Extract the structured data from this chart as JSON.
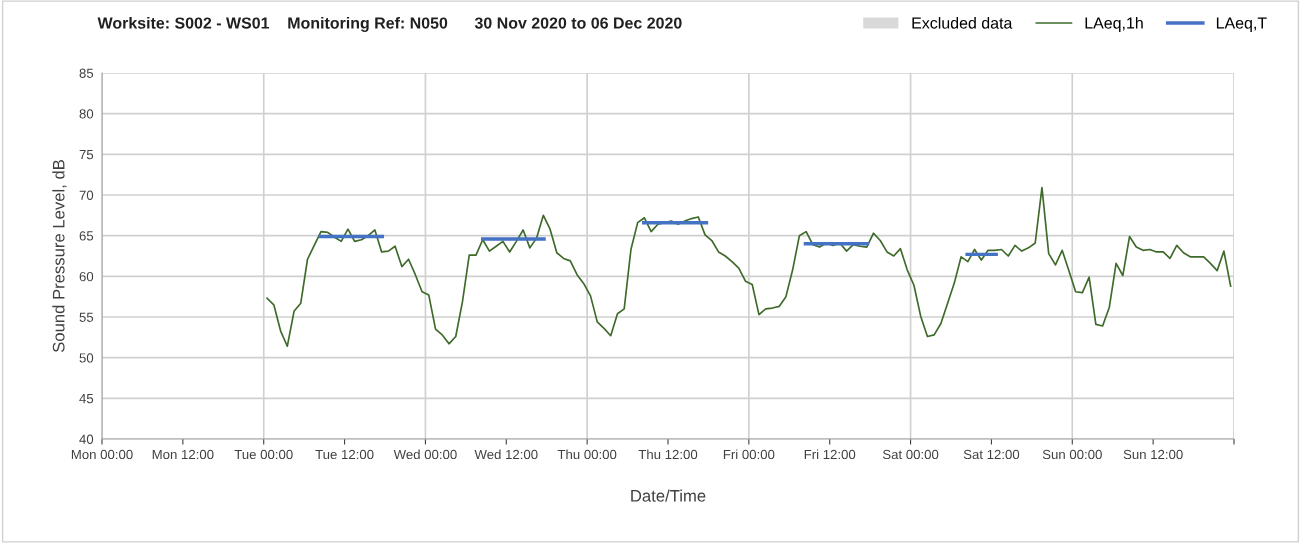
{
  "chart_data": {
    "type": "line",
    "title": "Worksite: S002 - WS01    Monitoring Ref: N050      30 Nov 2020 to 06 Dec 2020",
    "xlabel": "Date/Time",
    "ylabel": "Sound Pressure Level, dB",
    "xlim": [
      "2020-11-30T00:00",
      "2020-12-07T00:00"
    ],
    "ylim": [
      40,
      85
    ],
    "xticks": [
      {
        "value": "2020-11-30T00:00",
        "label": "Mon 00:00"
      },
      {
        "value": "2020-11-30T12:00",
        "label": "Mon 12:00"
      },
      {
        "value": "2020-12-01T00:00",
        "label": "Tue 00:00"
      },
      {
        "value": "2020-12-01T12:00",
        "label": "Tue 12:00"
      },
      {
        "value": "2020-12-02T00:00",
        "label": "Wed 00:00"
      },
      {
        "value": "2020-12-02T12:00",
        "label": "Wed 12:00"
      },
      {
        "value": "2020-12-03T00:00",
        "label": "Thu 00:00"
      },
      {
        "value": "2020-12-03T12:00",
        "label": "Thu 12:00"
      },
      {
        "value": "2020-12-04T00:00",
        "label": "Fri 00:00"
      },
      {
        "value": "2020-12-04T12:00",
        "label": "Fri 12:00"
      },
      {
        "value": "2020-12-05T00:00",
        "label": "Sat 00:00"
      },
      {
        "value": "2020-12-05T12:00",
        "label": "Sat 12:00"
      },
      {
        "value": "2020-12-06T00:00",
        "label": "Sun 00:00"
      },
      {
        "value": "2020-12-06T12:00",
        "label": "Sun 12:00"
      },
      {
        "value": "2020-12-07T00:00",
        "label": null
      }
    ],
    "yticks": [
      40,
      45,
      50,
      55,
      60,
      65,
      70,
      75,
      80,
      85
    ],
    "grid": true,
    "legend": "top right",
    "series": [
      {
        "name": "Excluded data",
        "type": "bar",
        "color": "#d9d9d9"
      },
      {
        "name": "LAeq,1h",
        "color": "#3e6a2a",
        "x": [
          "2020-12-01T00:30",
          "2020-12-01T01:30",
          "2020-12-01T02:30",
          "2020-12-01T03:30",
          "2020-12-01T04:30",
          "2020-12-01T05:30",
          "2020-12-01T06:30",
          "2020-12-01T07:30",
          "2020-12-01T08:30",
          "2020-12-01T09:30",
          "2020-12-01T10:30",
          "2020-12-01T11:30",
          "2020-12-01T12:30",
          "2020-12-01T13:30",
          "2020-12-01T14:30",
          "2020-12-01T15:30",
          "2020-12-01T16:30",
          "2020-12-01T17:30",
          "2020-12-01T18:30",
          "2020-12-01T19:30",
          "2020-12-01T20:30",
          "2020-12-01T21:30",
          "2020-12-01T22:30",
          "2020-12-01T23:30",
          "2020-12-02T00:30",
          "2020-12-02T01:30",
          "2020-12-02T02:30",
          "2020-12-02T03:30",
          "2020-12-02T04:30",
          "2020-12-02T05:30",
          "2020-12-02T06:30",
          "2020-12-02T07:30",
          "2020-12-02T08:30",
          "2020-12-02T09:30",
          "2020-12-02T10:30",
          "2020-12-02T11:30",
          "2020-12-02T12:30",
          "2020-12-02T13:30",
          "2020-12-02T14:30",
          "2020-12-02T15:30",
          "2020-12-02T16:30",
          "2020-12-02T17:30",
          "2020-12-02T18:30",
          "2020-12-02T19:30",
          "2020-12-02T20:30",
          "2020-12-02T21:30",
          "2020-12-02T22:30",
          "2020-12-02T23:30",
          "2020-12-03T00:30",
          "2020-12-03T01:30",
          "2020-12-03T02:30",
          "2020-12-03T03:30",
          "2020-12-03T04:30",
          "2020-12-03T05:30",
          "2020-12-03T06:30",
          "2020-12-03T07:30",
          "2020-12-03T08:30",
          "2020-12-03T09:30",
          "2020-12-03T10:30",
          "2020-12-03T11:30",
          "2020-12-03T12:30",
          "2020-12-03T13:30",
          "2020-12-03T14:30",
          "2020-12-03T15:30",
          "2020-12-03T16:30",
          "2020-12-03T17:30",
          "2020-12-03T18:30",
          "2020-12-03T19:30",
          "2020-12-03T20:30",
          "2020-12-03T21:30",
          "2020-12-03T22:30",
          "2020-12-03T23:30",
          "2020-12-04T00:30",
          "2020-12-04T01:30",
          "2020-12-04T02:30",
          "2020-12-04T03:30",
          "2020-12-04T04:30",
          "2020-12-04T05:30",
          "2020-12-04T06:30",
          "2020-12-04T07:30",
          "2020-12-04T08:30",
          "2020-12-04T09:30",
          "2020-12-04T10:30",
          "2020-12-04T11:30",
          "2020-12-04T12:30",
          "2020-12-04T13:30",
          "2020-12-04T14:30",
          "2020-12-04T15:30",
          "2020-12-04T16:30",
          "2020-12-04T17:30",
          "2020-12-04T18:30",
          "2020-12-04T19:30",
          "2020-12-04T20:30",
          "2020-12-04T21:30",
          "2020-12-04T22:30",
          "2020-12-04T23:30",
          "2020-12-05T00:30",
          "2020-12-05T01:30",
          "2020-12-05T02:30",
          "2020-12-05T03:30",
          "2020-12-05T04:30",
          "2020-12-05T05:30",
          "2020-12-05T06:30",
          "2020-12-05T07:30",
          "2020-12-05T08:30",
          "2020-12-05T09:30",
          "2020-12-05T10:30",
          "2020-12-05T11:30",
          "2020-12-05T12:30",
          "2020-12-05T13:30",
          "2020-12-05T14:30",
          "2020-12-05T15:30",
          "2020-12-05T16:30",
          "2020-12-05T17:30",
          "2020-12-05T18:30",
          "2020-12-05T19:30",
          "2020-12-05T20:30",
          "2020-12-05T21:30",
          "2020-12-05T22:30",
          "2020-12-05T23:30",
          "2020-12-06T00:30",
          "2020-12-06T01:30",
          "2020-12-06T02:30",
          "2020-12-06T03:30",
          "2020-12-06T04:30",
          "2020-12-06T05:30",
          "2020-12-06T06:30",
          "2020-12-06T07:30",
          "2020-12-06T08:30",
          "2020-12-06T09:30",
          "2020-12-06T10:30",
          "2020-12-06T11:30",
          "2020-12-06T12:30",
          "2020-12-06T13:30",
          "2020-12-06T14:30",
          "2020-12-06T15:30",
          "2020-12-06T16:30",
          "2020-12-06T17:30",
          "2020-12-06T18:30",
          "2020-12-06T19:30",
          "2020-12-06T20:30",
          "2020-12-06T21:30",
          "2020-12-06T22:30",
          "2020-12-06T23:30"
        ],
        "values": [
          57.3,
          56.5,
          53.3,
          51.4,
          55.7,
          56.7,
          62.1,
          63.8,
          65.5,
          65.4,
          64.8,
          64.3,
          65.8,
          64.3,
          64.5,
          65.0,
          65.7,
          63.0,
          63.1,
          63.7,
          61.2,
          62.1,
          60.2,
          58.1,
          57.7,
          53.5,
          52.8,
          51.7,
          52.6,
          56.9,
          62.6,
          62.6,
          64.5,
          63.1,
          63.7,
          64.3,
          63.0,
          64.3,
          65.7,
          63.5,
          64.7,
          67.5,
          65.8,
          62.9,
          62.2,
          61.9,
          60.2,
          59.1,
          57.6,
          54.4,
          53.6,
          52.7,
          55.4,
          56.0,
          63.3,
          66.6,
          67.2,
          65.5,
          66.4,
          66.6,
          66.8,
          66.4,
          66.8,
          67.1,
          67.3,
          65.1,
          64.4,
          63.0,
          62.5,
          61.8,
          61.0,
          59.4,
          59.0,
          55.3,
          56.0,
          56.1,
          56.3,
          57.5,
          60.8,
          65.0,
          65.5,
          63.9,
          63.6,
          64.1,
          63.8,
          64.1,
          63.1,
          63.9,
          63.7,
          63.6,
          65.3,
          64.4,
          63.0,
          62.5,
          63.4,
          60.8,
          58.9,
          55.1,
          52.6,
          52.8,
          54.2,
          56.7,
          59.2,
          62.4,
          61.8,
          63.3,
          62.0,
          63.2,
          63.2,
          63.3,
          62.5,
          63.8,
          63.1,
          63.5,
          64.1,
          70.9,
          62.8,
          61.4,
          63.2,
          60.7,
          58.1,
          58.0,
          59.9,
          54.1,
          53.9,
          56.2,
          61.6,
          60.1,
          64.9,
          63.6,
          63.2,
          63.3,
          63.0,
          63.0,
          62.2,
          63.8,
          62.9,
          62.4,
          62.4,
          62.4,
          61.6,
          60.7,
          63.1,
          58.8
        ]
      },
      {
        "name": "LAeq,T",
        "color": "#4472c4",
        "x": [
          "2020-12-01T08:24",
          "2020-12-01T17:36",
          "2020-12-02T01:00",
          "2020-12-02T08:30",
          "2020-12-02T17:36",
          "2020-12-03T01:00",
          "2020-12-03T08:24",
          "2020-12-03T17:42",
          "2020-12-04T01:00",
          "2020-12-04T08:24",
          "2020-12-04T17:36",
          "2020-12-05T01:00",
          "2020-12-05T08:24",
          "2020-12-05T12:42"
        ],
        "values": [
          64.9,
          64.9,
          null,
          64.6,
          64.6,
          null,
          66.6,
          66.6,
          null,
          64.0,
          64.0,
          null,
          62.7,
          62.7
        ]
      }
    ]
  }
}
